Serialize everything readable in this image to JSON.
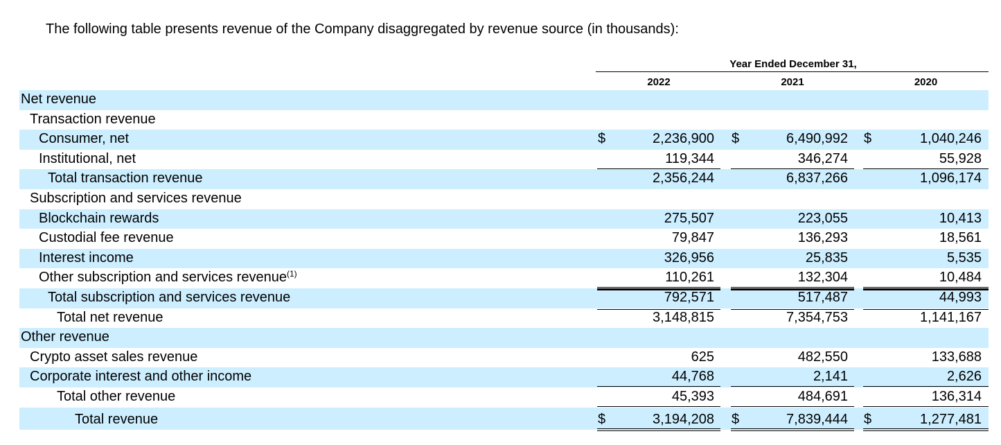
{
  "intro": "The following table presents revenue of the Company disaggregated by revenue source (in thousands):",
  "period_header": "Year Ended December 31,",
  "years": [
    "2022",
    "2021",
    "2020"
  ],
  "currency_symbol": "$",
  "rows": [
    {
      "label": "Net revenue",
      "values": [
        "",
        "",
        ""
      ]
    },
    {
      "label": "Transaction revenue",
      "values": [
        "",
        "",
        ""
      ]
    },
    {
      "label": "Consumer, net",
      "values": [
        "2,236,900",
        "6,490,992",
        "1,040,246"
      ]
    },
    {
      "label": "Institutional, net",
      "values": [
        "119,344",
        "346,274",
        "55,928"
      ]
    },
    {
      "label": "Total transaction revenue",
      "values": [
        "2,356,244",
        "6,837,266",
        "1,096,174"
      ]
    },
    {
      "label": "Subscription and services revenue",
      "values": [
        "",
        "",
        ""
      ]
    },
    {
      "label": "Blockchain rewards",
      "values": [
        "275,507",
        "223,055",
        "10,413"
      ]
    },
    {
      "label": "Custodial fee revenue",
      "values": [
        "79,847",
        "136,293",
        "18,561"
      ]
    },
    {
      "label": "Interest income",
      "values": [
        "326,956",
        "25,835",
        "5,535"
      ]
    },
    {
      "label": "Other subscription and services revenue",
      "footnote": "(1)",
      "values": [
        "110,261",
        "132,304",
        "10,484"
      ]
    },
    {
      "label": "Total subscription and services revenue",
      "values": [
        "792,571",
        "517,487",
        "44,993"
      ]
    },
    {
      "label": "Total net revenue",
      "values": [
        "3,148,815",
        "7,354,753",
        "1,141,167"
      ]
    },
    {
      "label": "Other revenue",
      "values": [
        "",
        "",
        ""
      ]
    },
    {
      "label": "Crypto asset sales revenue",
      "values": [
        "625",
        "482,550",
        "133,688"
      ]
    },
    {
      "label": "Corporate interest and other income",
      "values": [
        "44,768",
        "2,141",
        "2,626"
      ]
    },
    {
      "label": "Total other revenue",
      "values": [
        "45,393",
        "484,691",
        "136,314"
      ]
    },
    {
      "label": "Total revenue",
      "values": [
        "3,194,208",
        "7,839,444",
        "1,277,481"
      ]
    }
  ]
}
